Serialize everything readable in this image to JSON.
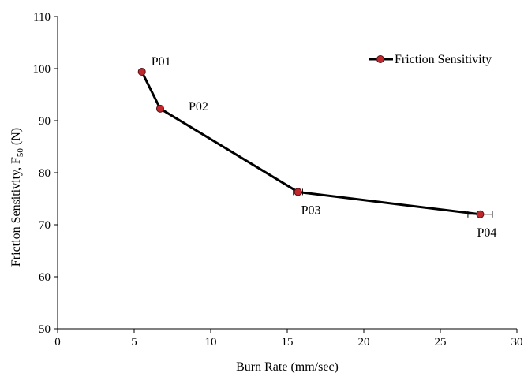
{
  "chart_data": {
    "type": "line",
    "xlabel": "Burn Rate (mm/sec)",
    "ylabel_main": "Friction Sensitivity, F",
    "ylabel_sub": "50",
    "ylabel_unit": " (N)",
    "xlim": [
      0,
      30
    ],
    "ylim": [
      50,
      110
    ],
    "xticks": [
      0,
      5,
      10,
      15,
      20,
      25,
      30
    ],
    "yticks": [
      50,
      60,
      70,
      80,
      90,
      100,
      110
    ],
    "grid": false,
    "legend_position": "top-right",
    "series": [
      {
        "name": "Friction Sensitivity",
        "color": "#000000",
        "marker_color": "#c0282d",
        "points": [
          {
            "label": "P01",
            "x": 5.5,
            "y": 99.4
          },
          {
            "label": "P02",
            "x": 6.7,
            "y": 92.3
          },
          {
            "label": "P03",
            "x": 15.7,
            "y": 76.3,
            "xerr": 0.3
          },
          {
            "label": "P04",
            "x": 27.6,
            "y": 72.0,
            "xerr": 0.8
          }
        ]
      }
    ]
  }
}
